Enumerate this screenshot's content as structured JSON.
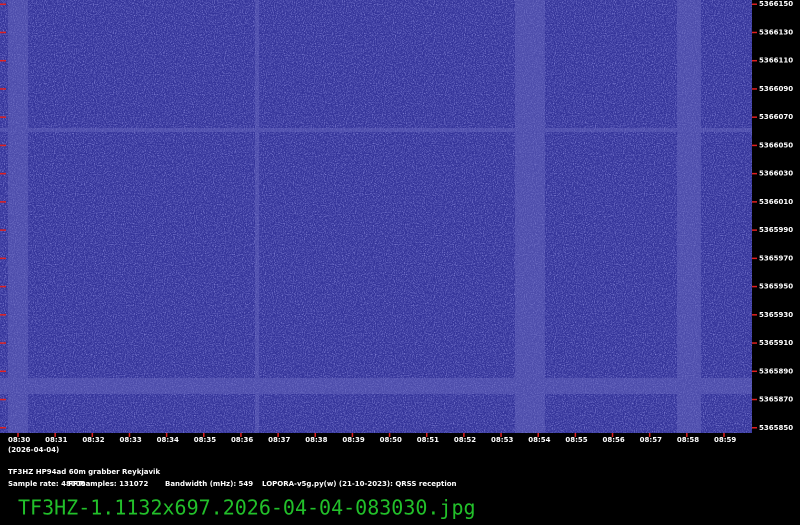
{
  "chart_data": {
    "type": "spectrogram",
    "station": "TF3HZ HP94ad 60m grabber Reykjavik",
    "date": "(2026-04-04)",
    "sample_rate": "Sample rate: 48000",
    "fft_samples": "FFTsamples: 131072",
    "bandwidth": "Bandwidth (mHz): 549",
    "software": "LOPORA-v5g.py(w) (21-10-2023): QRSS reception",
    "filename": "TF3HZ-1.1132x697.2026-04-04-083030.jpg",
    "categories": [
      "08:30",
      "08:31",
      "08:32",
      "08:33",
      "08:34",
      "08:35",
      "08:36",
      "08:37",
      "08:38",
      "08:39",
      "08:50",
      "08:51",
      "08:52",
      "08:53",
      "08:54",
      "08:55",
      "08:56",
      "08:57",
      "08:58",
      "08:59"
    ],
    "ylim": [
      5365847,
      5366153
    ],
    "yticks": [
      5366150,
      5366130,
      5366110,
      5366090,
      5366070,
      5366050,
      5366030,
      5366010,
      5365990,
      5365970,
      5365950,
      5365930,
      5365910,
      5365890,
      5365870,
      5365850
    ],
    "tick_color": "#e02020"
  }
}
